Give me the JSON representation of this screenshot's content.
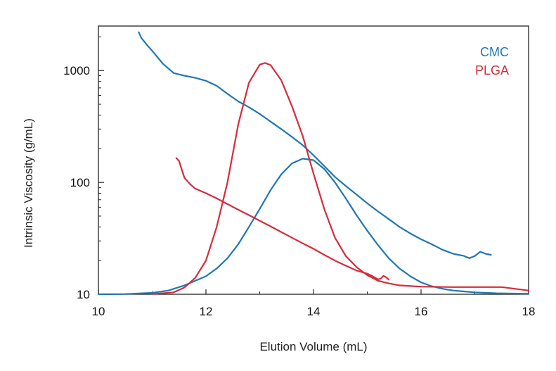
{
  "chart_data": {
    "type": "line",
    "title": "",
    "xlabel": "Elution Volume (mL)",
    "ylabel": "Intrinsic Viscosity (g/mL)",
    "xlim": [
      10,
      18
    ],
    "ylim": [
      10,
      2500
    ],
    "y_scale": "log",
    "grid": false,
    "legend_position": "top-right",
    "x_ticks": [
      10,
      12,
      14,
      16,
      18
    ],
    "x_tick_labels": [
      "10",
      "12",
      "14",
      "16",
      "18"
    ],
    "y_ticks": [
      10,
      100,
      1000
    ],
    "y_tick_labels": [
      "10",
      "100",
      "1000"
    ],
    "colors": {
      "CMC": "#1f77b4",
      "PLGA": "#d62b3a"
    },
    "legend": [
      "CMC",
      "PLGA"
    ],
    "series": [
      {
        "name": "CMC",
        "role": "viscosity",
        "color": "#1f77b4",
        "x": [
          10.75,
          10.8,
          10.9,
          11.0,
          11.2,
          11.4,
          11.6,
          11.8,
          12.0,
          12.2,
          12.4,
          12.6,
          12.8,
          13.0,
          13.2,
          13.4,
          13.6,
          13.8,
          14.0,
          14.2,
          14.4,
          14.6,
          14.8,
          15.0,
          15.2,
          15.4,
          15.6,
          15.8,
          16.0,
          16.2,
          16.4,
          16.6,
          16.8,
          16.9,
          17.0,
          17.1,
          17.2,
          17.3
        ],
        "y": [
          2200,
          1950,
          1700,
          1500,
          1150,
          950,
          900,
          860,
          810,
          730,
          620,
          530,
          470,
          410,
          350,
          300,
          255,
          215,
          175,
          140,
          112,
          93,
          78,
          65,
          55,
          47,
          40,
          35,
          31,
          28,
          25,
          23,
          22,
          21,
          22,
          24,
          23,
          22.5
        ]
      },
      {
        "name": "CMC",
        "role": "refractive-index-peak",
        "color": "#1f77b4",
        "x": [
          10.0,
          10.5,
          11.0,
          11.3,
          11.6,
          12.0,
          12.2,
          12.4,
          12.6,
          12.8,
          13.0,
          13.2,
          13.4,
          13.6,
          13.8,
          14.0,
          14.2,
          14.4,
          14.6,
          14.8,
          15.0,
          15.2,
          15.4,
          15.6,
          15.8,
          16.0,
          16.2,
          16.4,
          16.6,
          16.8,
          17.0,
          17.4,
          18.0
        ],
        "y": [
          10,
          10.05,
          10.3,
          10.8,
          12,
          14.5,
          17,
          21,
          28,
          40,
          58,
          85,
          118,
          148,
          163,
          158,
          132,
          100,
          72,
          51,
          37,
          27.5,
          21,
          17,
          14.5,
          12.8,
          11.8,
          11.2,
          10.8,
          10.6,
          10.4,
          10.2,
          10.1
        ]
      },
      {
        "name": "PLGA",
        "role": "viscosity",
        "color": "#d62b3a",
        "x": [
          11.45,
          11.5,
          11.55,
          11.6,
          11.7,
          11.8,
          12.0,
          12.2,
          12.4,
          12.6,
          12.8,
          13.0,
          13.2,
          13.4,
          13.6,
          13.8,
          14.0,
          14.2,
          14.4,
          14.6,
          14.8,
          15.0,
          15.1,
          15.2,
          15.25,
          15.3,
          15.35,
          15.4
        ],
        "y": [
          165,
          155,
          130,
          110,
          97,
          88,
          80,
          72,
          64,
          57,
          51,
          45.5,
          40.5,
          36,
          32,
          28.5,
          25.5,
          22.5,
          20,
          18,
          16.3,
          15.3,
          14.5,
          13.6,
          13.8,
          14.6,
          14.2,
          13.5
        ]
      },
      {
        "name": "PLGA",
        "role": "refractive-index-peak",
        "color": "#d62b3a",
        "x": [
          11.0,
          11.4,
          11.6,
          11.8,
          12.0,
          12.2,
          12.4,
          12.6,
          12.8,
          13.0,
          13.1,
          13.2,
          13.4,
          13.6,
          13.8,
          14.0,
          14.2,
          14.4,
          14.6,
          14.8,
          15.0,
          15.2,
          15.4,
          15.6,
          16.0,
          16.6,
          17.0,
          17.5,
          18.0
        ],
        "y": [
          10.05,
          10.4,
          11.5,
          14,
          20,
          40,
          100,
          330,
          780,
          1130,
          1170,
          1120,
          820,
          480,
          260,
          120,
          58,
          32,
          22,
          17.5,
          14.8,
          13.2,
          12.5,
          12.0,
          11.7,
          11.6,
          11.6,
          11.6,
          10.8
        ]
      }
    ]
  }
}
